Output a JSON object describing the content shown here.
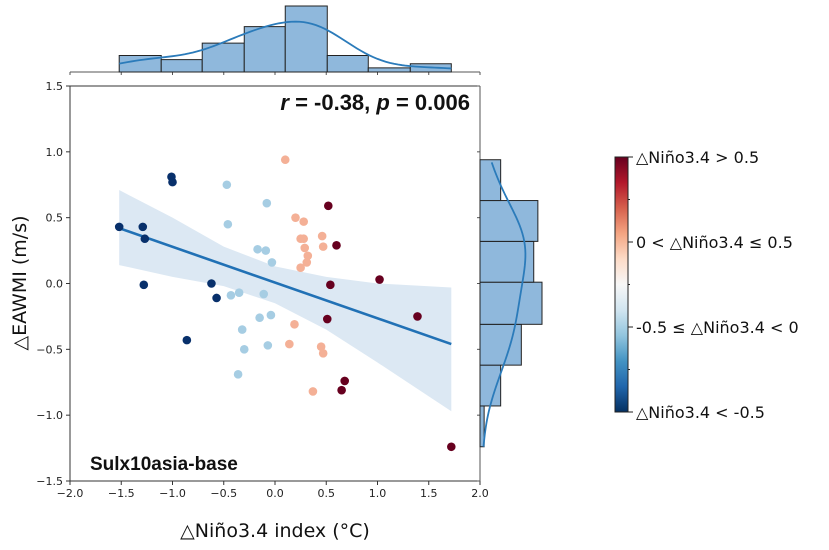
{
  "chart_data": {
    "type": "scatter",
    "title": "",
    "xlabel": "△Niño3.4 index (°C)",
    "ylabel": "△EAWMI (m/s)",
    "xlim": [
      -2.0,
      2.0
    ],
    "ylim": [
      -1.5,
      1.5
    ],
    "xticks": [
      "−2.0",
      "−1.5",
      "−1.0",
      "−0.5",
      "0.0",
      "0.5",
      "1.0",
      "1.5",
      "2.0"
    ],
    "xtick_values": [
      -2.0,
      -1.5,
      -1.0,
      -0.5,
      0.0,
      0.5,
      1.0,
      1.5,
      2.0
    ],
    "yticks": [
      "−1.5",
      "−1.0",
      "−0.5",
      "0.0",
      "0.5",
      "1.0",
      "1.5"
    ],
    "ytick_values": [
      -1.5,
      -1.0,
      -0.5,
      0.0,
      0.5,
      1.0,
      1.5
    ],
    "grid": false,
    "annotation_stats": "r = -0.38, p = 0.006",
    "annotation_stats_parts": {
      "r_sym": "r",
      "r_val": " = -0.38, ",
      "p_sym": "p",
      "p_val": " = 0.006"
    },
    "experiment_label": "Sulx10asia-base",
    "colors": {
      "strong_neg": "#08306b",
      "weak_neg": "#a6cde3",
      "weak_pos": "#f4b096",
      "strong_pos": "#67001f",
      "regression_line": "#2171b5",
      "confidence_band": "#dce8f3",
      "hist_fill": "#8fb8dc",
      "hist_edge": "#222222",
      "kde_line": "#2b7bba"
    },
    "series": [
      {
        "name": "△Niño3.4 < -0.5",
        "category": "strong_neg",
        "points": [
          [
            -1.52,
            0.43
          ],
          [
            -1.29,
            0.43
          ],
          [
            -1.27,
            0.34
          ],
          [
            -1.28,
            -0.01
          ],
          [
            -1.01,
            0.81
          ],
          [
            -1.0,
            0.77
          ],
          [
            -0.86,
            -0.43
          ],
          [
            -0.62,
            0.0
          ],
          [
            -0.57,
            -0.11
          ]
        ]
      },
      {
        "name": "-0.5 ≤ △Niño3.4 < 0",
        "category": "weak_neg",
        "points": [
          [
            -0.47,
            0.75
          ],
          [
            -0.46,
            0.45
          ],
          [
            -0.08,
            0.61
          ],
          [
            -0.43,
            -0.09
          ],
          [
            -0.35,
            -0.07
          ],
          [
            -0.17,
            0.26
          ],
          [
            -0.09,
            0.25
          ],
          [
            -0.03,
            0.16
          ],
          [
            -0.04,
            -0.24
          ],
          [
            -0.15,
            -0.26
          ],
          [
            -0.32,
            -0.35
          ],
          [
            -0.3,
            -0.5
          ],
          [
            -0.07,
            -0.47
          ],
          [
            -0.36,
            -0.69
          ],
          [
            -0.11,
            -0.08
          ]
        ]
      },
      {
        "name": "0 < △Niño3.4 ≤ 0.5",
        "category": "weak_pos",
        "points": [
          [
            0.1,
            0.94
          ],
          [
            0.2,
            0.5
          ],
          [
            0.28,
            0.47
          ],
          [
            0.25,
            0.34
          ],
          [
            0.28,
            0.34
          ],
          [
            0.29,
            0.27
          ],
          [
            0.32,
            0.21
          ],
          [
            0.31,
            0.16
          ],
          [
            0.25,
            0.12
          ],
          [
            0.46,
            0.36
          ],
          [
            0.47,
            0.28
          ],
          [
            0.19,
            -0.31
          ],
          [
            0.14,
            -0.46
          ],
          [
            0.45,
            -0.48
          ],
          [
            0.47,
            -0.53
          ],
          [
            0.37,
            -0.82
          ]
        ]
      },
      {
        "name": "△Niño3.4 > 0.5",
        "category": "strong_pos",
        "points": [
          [
            0.52,
            0.59
          ],
          [
            0.6,
            0.29
          ],
          [
            1.02,
            0.03
          ],
          [
            0.54,
            -0.01
          ],
          [
            0.51,
            -0.27
          ],
          [
            1.39,
            -0.25
          ],
          [
            0.68,
            -0.74
          ],
          [
            0.65,
            -0.81
          ],
          [
            1.72,
            -1.24
          ]
        ]
      }
    ],
    "regression": {
      "x_range": [
        -1.52,
        1.72
      ],
      "y_at_x_min": 0.42,
      "y_at_x_max": -0.46,
      "ci_upper": [
        [
          -1.52,
          0.71
        ],
        [
          -1.0,
          0.5
        ],
        [
          -0.5,
          0.28
        ],
        [
          0.0,
          0.13
        ],
        [
          0.5,
          0.05
        ],
        [
          1.0,
          0.0
        ],
        [
          1.72,
          -0.03
        ]
      ],
      "ci_lower": [
        [
          -1.52,
          0.14
        ],
        [
          -1.0,
          0.05
        ],
        [
          -0.5,
          -0.02
        ],
        [
          0.0,
          -0.15
        ],
        [
          0.5,
          -0.35
        ],
        [
          1.0,
          -0.6
        ],
        [
          1.72,
          -0.97
        ]
      ]
    },
    "top_histogram": {
      "bin_edges": [
        -1.52,
        -1.11,
        -0.71,
        -0.3,
        0.1,
        0.51,
        0.91,
        1.32,
        1.72
      ],
      "counts": [
        4,
        3,
        7,
        11,
        16,
        4,
        1,
        2
      ]
    },
    "right_histogram": {
      "bin_edges": [
        -1.24,
        -0.93,
        -0.62,
        -0.31,
        0.01,
        0.32,
        0.63,
        0.94
      ],
      "counts": [
        1,
        5,
        10,
        15,
        13,
        14,
        5
      ]
    },
    "colorbar": {
      "labels": [
        "△Niño3.4 > 0.5",
        "0 < △Niño3.4 ≤ 0.5",
        "-0.5 ≤ △Niño3.4 < 0",
        "△Niño3.4 < -0.5"
      ],
      "colors": [
        "#67001f",
        "#b2182b",
        "#d6604d",
        "#f4a582",
        "#fddbc7",
        "#f7f7f7",
        "#d1e5f0",
        "#92c5de",
        "#4393c3",
        "#2166ac",
        "#053061"
      ]
    }
  }
}
